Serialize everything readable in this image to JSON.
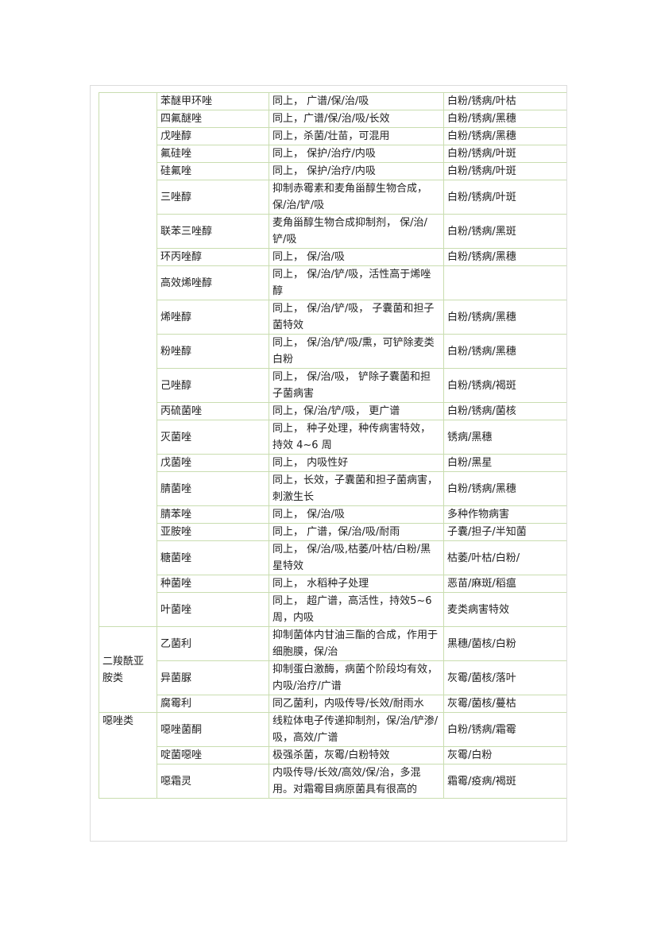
{
  "table": {
    "groups": [
      {
        "rows": [
          [
            "苯醚甲环唑",
            "同上， 广谱/保/治/吸",
            "白粉/锈病/叶枯"
          ],
          [
            "四氟醚唑",
            "同上，广谱/保/治/吸/长效",
            "白粉/锈病/黑穗"
          ],
          [
            "戊唑醇",
            "同上，杀菌/壮苗，可混用",
            "白粉/锈病/黑穗"
          ],
          [
            "氟硅唑",
            "同上， 保护/治疗/内吸",
            "白粉/锈病/叶斑"
          ],
          [
            "硅氟唑",
            "同上， 保护/治疗/内吸",
            "白粉/锈病/叶斑"
          ],
          [
            "三唑醇",
            "抑制赤霉素和麦角甾醇生物合成，保/治/铲/吸",
            "白粉/锈病/叶斑"
          ],
          [
            "联苯三唑醇",
            "麦角甾醇生物合成抑制剂， 保/治/铲/吸",
            "白粉/锈病/黑斑"
          ],
          [
            "环丙唑醇",
            "同上， 保/治/吸",
            "白粉/锈病/黑穗"
          ],
          [
            "高效烯唑醇",
            "同上， 保/治/铲/吸，活性高于烯唑醇",
            null
          ],
          [
            "烯唑醇",
            "同上， 保/治/铲/吸， 子囊菌和担子菌特效",
            "白粉/锈病/黑穗"
          ],
          [
            "粉唑醇",
            "同上， 保/治/铲/吸/熏，可铲除麦类白粉",
            "白粉/锈病/黑穗"
          ],
          [
            "己唑醇",
            "同上， 保/治/吸， 铲除子囊菌和担子菌病害",
            "白粉/锈病/褐斑"
          ],
          [
            "丙硫菌唑",
            "同上，保/治/铲/吸， 更广谱",
            "白粉/锈病/菌核"
          ],
          [
            "灭菌唑",
            "同上， 种子处理，种传病害特效，持效 4~6 周",
            "锈病/黑穗"
          ],
          [
            "戊菌唑",
            "同上， 内吸性好",
            "白粉/黑星"
          ],
          [
            "腈菌唑",
            "同上，长效，子囊菌和担子菌病害，刺激生长",
            "白粉/锈病/黑穗"
          ],
          [
            "腈苯唑",
            "同上， 保/治/吸",
            "多种作物病害"
          ],
          [
            "亚胺唑",
            "同上， 广谱，保/治/吸/耐雨",
            "子囊/担子/半知菌"
          ],
          [
            "糖菌唑",
            "同上， 保/治/吸,枯萎/叶枯/白粉/黑星特效",
            "枯萎/叶枯/白粉/"
          ],
          [
            "种菌唑",
            "同上， 水稻种子处理",
            "恶苗/麻斑/稻瘟"
          ],
          [
            "叶菌唑",
            "同上， 超广谱，高活性，持效5~6周，内吸",
            "麦类病害特效"
          ]
        ]
      },
      {
        "label": "二羧酰亚胺类",
        "rows": [
          [
            "乙菌利",
            "抑制菌体内甘油三酯的合成，作用于细胞膜，保/治",
            "黑穗/菌核/白粉"
          ],
          [
            "异菌脲",
            "抑制蛋白激酶，病菌个阶段均有效，内吸/治疗/广谱",
            "灰霉/菌核/落叶"
          ],
          [
            "腐霉利",
            "同乙菌利，内吸传导/长效/耐雨水",
            "灰霉/菌核/蔓枯"
          ]
        ]
      },
      {
        "label": "噁唑类",
        "rows": [
          [
            "噁唑菌酮",
            "线粒体电子传递抑制剂，保/治/铲渗/吸，高效/广谱",
            "白粉/锈病/霜霉"
          ],
          [
            "啶菌噁唑",
            "极强杀菌，灰霉/白粉特效",
            "灰霉/白粉"
          ],
          [
            "噁霜灵",
            "内吸传导/长效/高效/保/治，多混用。对霜霉目病原菌具有很高的",
            "霜霉/疫病/褐斑"
          ]
        ]
      }
    ]
  }
}
